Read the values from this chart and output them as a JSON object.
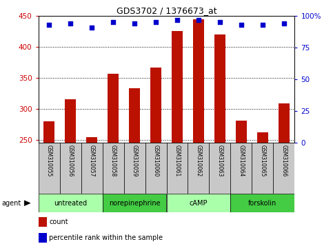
{
  "title": "GDS3702 / 1376673_at",
  "samples": [
    "GSM310055",
    "GSM310056",
    "GSM310057",
    "GSM310058",
    "GSM310059",
    "GSM310060",
    "GSM310061",
    "GSM310062",
    "GSM310063",
    "GSM310064",
    "GSM310065",
    "GSM310066"
  ],
  "counts": [
    280,
    315,
    254,
    357,
    333,
    366,
    425,
    444,
    420,
    281,
    262,
    309
  ],
  "percentiles": [
    93,
    94,
    91,
    95,
    94,
    95,
    97,
    97,
    95,
    93,
    93,
    94
  ],
  "ylim_left": [
    245,
    450
  ],
  "ylim_right": [
    0,
    100
  ],
  "yticks_left": [
    250,
    300,
    350,
    400,
    450
  ],
  "yticks_right": [
    0,
    25,
    50,
    75,
    100
  ],
  "groups": [
    {
      "label": "untreated",
      "start": 0,
      "end": 3
    },
    {
      "label": "norepinephrine",
      "start": 3,
      "end": 6
    },
    {
      "label": "cAMP",
      "start": 6,
      "end": 9
    },
    {
      "label": "forskolin",
      "start": 9,
      "end": 12
    }
  ],
  "bar_color": "#bb1100",
  "scatter_color": "#0000cc",
  "bg_sample_label": "#c8c8c8",
  "bg_group_label_light": "#aaffaa",
  "bg_group_label_dark": "#44cc44",
  "agent_label": "agent",
  "count_legend": "count",
  "pct_legend": "percentile rank within the sample",
  "bar_width": 0.5,
  "scatter_marker": "s",
  "scatter_size": 18,
  "right_axis_color": "#0000cc",
  "left_axis_color": "#cc0000"
}
